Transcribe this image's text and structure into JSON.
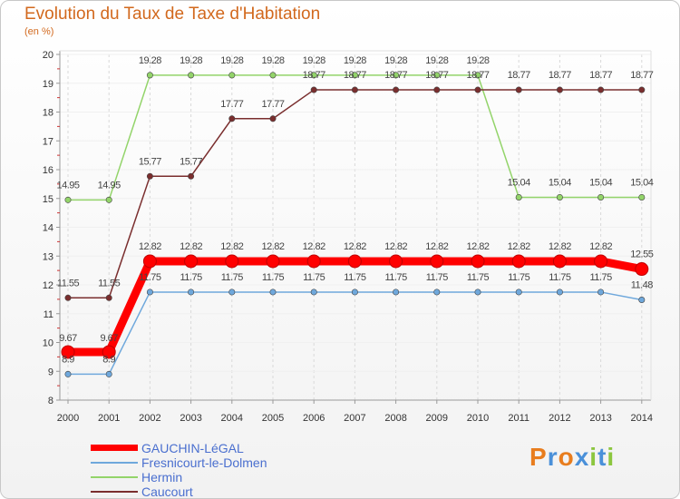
{
  "chart_data": {
    "type": "line",
    "title": "Evolution du Taux de Taxe d'Habitation",
    "subtitle": "(en %)",
    "x": [
      "2000",
      "2001",
      "2002",
      "2003",
      "2004",
      "2005",
      "2006",
      "2007",
      "2008",
      "2009",
      "2010",
      "2011",
      "2012",
      "2013",
      "2014"
    ],
    "ylim": [
      8,
      20
    ],
    "yticks": [
      8,
      9,
      10,
      11,
      12,
      13,
      14,
      15,
      16,
      17,
      18,
      19,
      20
    ],
    "grid": "vertical dashed",
    "series": [
      {
        "name": "GAUCHIN-LéGAL",
        "color": "#ff0000",
        "values": [
          9.67,
          9.67,
          12.82,
          12.82,
          12.82,
          12.82,
          12.82,
          12.82,
          12.82,
          12.82,
          12.82,
          12.82,
          12.82,
          12.82,
          12.55
        ],
        "labels": [
          "9.67",
          "9.67",
          "12.82",
          "12.82",
          "12.82",
          "12.82",
          "12.82",
          "12.82",
          "12.82",
          "12.82",
          "12.82",
          "12.82",
          "12.82",
          "12.82",
          "12.55"
        ]
      },
      {
        "name": "Fresnicourt-le-Dolmen",
        "color": "#6fa8dc",
        "values": [
          8.9,
          8.9,
          11.75,
          11.75,
          11.75,
          11.75,
          11.75,
          11.75,
          11.75,
          11.75,
          11.75,
          11.75,
          11.75,
          11.75,
          11.48
        ],
        "labels": [
          "8.9",
          "8.9",
          "11.75",
          "11.75",
          "11.75",
          "11.75",
          "11.75",
          "11.75",
          "11.75",
          "11.75",
          "11.75",
          "11.75",
          "11.75",
          "11.75",
          "11.48"
        ]
      },
      {
        "name": "Hermin",
        "color": "#93d46a",
        "values": [
          14.95,
          14.95,
          19.28,
          19.28,
          19.28,
          19.28,
          19.28,
          19.28,
          19.28,
          19.28,
          19.28,
          15.04,
          15.04,
          15.04,
          15.04
        ],
        "labels": [
          "14.95",
          "14.95",
          "19.28",
          "19.28",
          "19.28",
          "19.28",
          "19.28",
          "19.28",
          "19.28",
          "19.28",
          "19.28",
          "15.04",
          "15.04",
          "15.04",
          "15.04"
        ]
      },
      {
        "name": "Caucourt",
        "color": "#7a2e2e",
        "values": [
          11.55,
          11.55,
          15.77,
          15.77,
          17.77,
          17.77,
          18.77,
          18.77,
          18.77,
          18.77,
          18.77,
          18.77,
          18.77,
          18.77,
          18.77
        ],
        "labels": [
          "11.55",
          "11.55",
          "15.77",
          "15.77",
          "17.77",
          "17.77",
          "18.77",
          "18.77",
          "18.77",
          "18.77",
          "18.77",
          "18.77",
          "18.77",
          "18.77",
          "18.77"
        ]
      }
    ],
    "legend": "bottom-left"
  },
  "logo": {
    "letters": [
      "P",
      "r",
      "o",
      "x",
      "i",
      "t",
      "i"
    ],
    "colors": [
      "#e87d1e",
      "#4a90d9",
      "#e87d1e",
      "#4a90d9",
      "#8cc63f",
      "#4a90d9",
      "#8cc63f"
    ]
  }
}
